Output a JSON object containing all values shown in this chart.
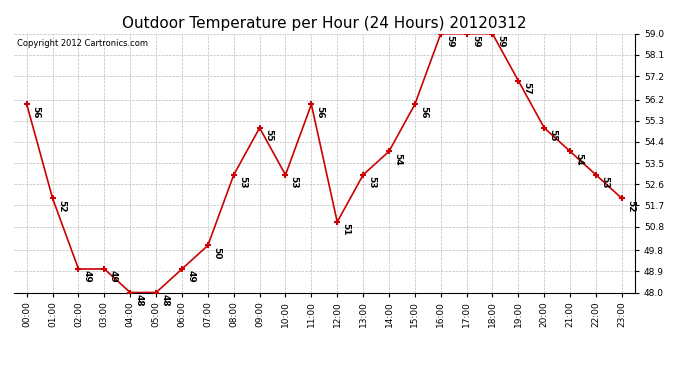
{
  "title": "Outdoor Temperature per Hour (24 Hours) 20120312",
  "copyright": "Copyright 2012 Cartronics.com",
  "hours": [
    "00:00",
    "01:00",
    "02:00",
    "03:00",
    "04:00",
    "05:00",
    "06:00",
    "07:00",
    "08:00",
    "09:00",
    "10:00",
    "11:00",
    "12:00",
    "13:00",
    "14:00",
    "15:00",
    "16:00",
    "17:00",
    "18:00",
    "19:00",
    "20:00",
    "21:00",
    "22:00",
    "23:00"
  ],
  "values": [
    56,
    52,
    49,
    49,
    48,
    48,
    49,
    50,
    53,
    55,
    53,
    56,
    51,
    53,
    54,
    56,
    59,
    59,
    59,
    57,
    55,
    54,
    53,
    52
  ],
  "line_color": "#cc0000",
  "marker_color": "#cc0000",
  "bg_color": "#ffffff",
  "grid_color": "#bbbbbb",
  "ylim_min": 48.0,
  "ylim_max": 59.0,
  "yticks": [
    48.0,
    48.9,
    49.8,
    50.8,
    51.7,
    52.6,
    53.5,
    54.4,
    55.3,
    56.2,
    57.2,
    58.1,
    59.0
  ],
  "title_fontsize": 11,
  "label_fontsize": 6.5,
  "annotation_fontsize": 6.5,
  "copyright_fontsize": 6
}
